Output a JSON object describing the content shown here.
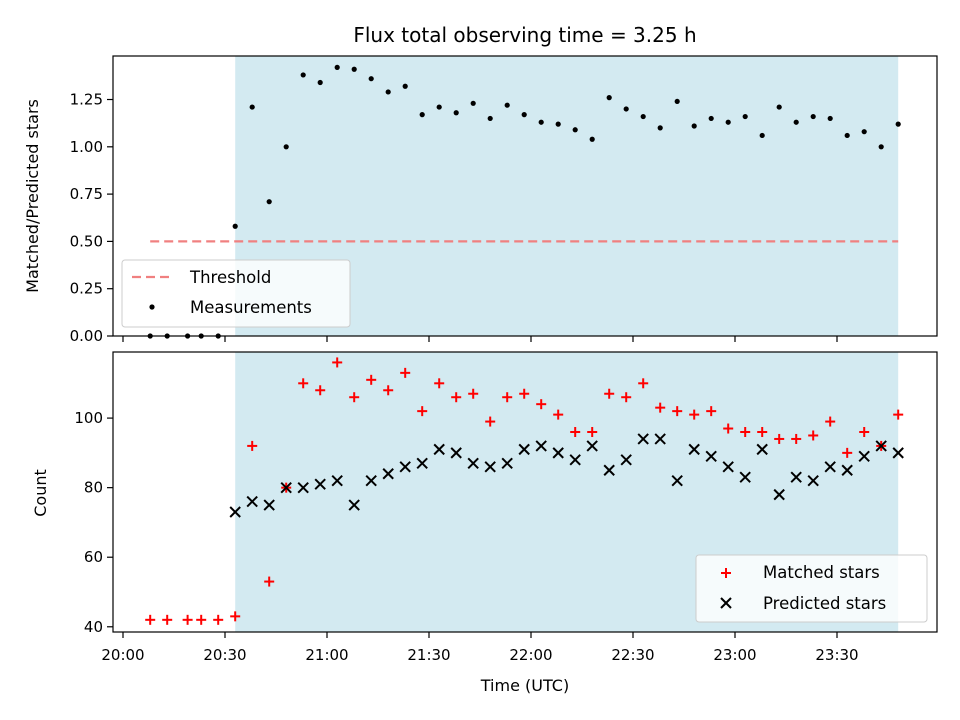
{
  "chart_data": {
    "type": "scatter",
    "title": "Flux total observing time = 3.25 h",
    "xlabel": "Time (UTC)",
    "x_ticks": [
      "20:00",
      "20:30",
      "21:00",
      "21:30",
      "22:00",
      "22:30",
      "23:00",
      "23:30"
    ],
    "observing_window": {
      "start": "20:33",
      "end": "23:48"
    },
    "colors": {
      "window": "#d3eaf1",
      "threshold": "#f08080",
      "measurements": "#000000",
      "matched": "#ff0000",
      "predicted": "#000000"
    },
    "top_panel": {
      "ylabel": "Matched/Predicted stars",
      "ylim": [
        0,
        1.48
      ],
      "y_ticks": [
        "0.00",
        "0.25",
        "0.50",
        "0.75",
        "1.00",
        "1.25"
      ],
      "y_tick_values": [
        0,
        0.25,
        0.5,
        0.75,
        1.0,
        1.25
      ],
      "legend_position": "lower-left",
      "threshold": {
        "name": "Threshold",
        "value": 0.5,
        "x_range": [
          "20:08",
          "23:48"
        ]
      },
      "series": [
        {
          "name": "Measurements",
          "x": [
            "20:08",
            "20:13",
            "20:19",
            "20:23",
            "20:28",
            "20:33",
            "20:38",
            "20:43",
            "20:48",
            "20:53",
            "20:58",
            "21:03",
            "21:08",
            "21:13",
            "21:18",
            "21:23",
            "21:28",
            "21:33",
            "21:38",
            "21:43",
            "21:48",
            "21:53",
            "21:58",
            "22:03",
            "22:08",
            "22:13",
            "22:18",
            "22:23",
            "22:28",
            "22:33",
            "22:38",
            "22:43",
            "22:48",
            "22:53",
            "22:58",
            "23:03",
            "23:08",
            "23:13",
            "23:18",
            "23:23",
            "23:28",
            "23:33",
            "23:38",
            "23:43",
            "23:48"
          ],
          "y": [
            0.0,
            0.0,
            0.0,
            0.0,
            0.0,
            0.58,
            1.21,
            0.71,
            1.0,
            1.38,
            1.34,
            1.42,
            1.41,
            1.36,
            1.29,
            1.32,
            1.17,
            1.21,
            1.18,
            1.23,
            1.15,
            1.22,
            1.17,
            1.13,
            1.12,
            1.09,
            1.04,
            1.26,
            1.2,
            1.16,
            1.1,
            1.24,
            1.11,
            1.15,
            1.13,
            1.16,
            1.06,
            1.21,
            1.13,
            1.16,
            1.15,
            1.06,
            1.08,
            1.0,
            1.12
          ]
        }
      ]
    },
    "bottom_panel": {
      "ylabel": "Count",
      "ylim": [
        38.5,
        119
      ],
      "y_ticks": [
        "40",
        "60",
        "80",
        "100"
      ],
      "y_tick_values": [
        40,
        60,
        80,
        100
      ],
      "legend_position": "lower-right",
      "series": [
        {
          "name": "Matched stars",
          "marker": "plus",
          "x": [
            "20:08",
            "20:13",
            "20:19",
            "20:23",
            "20:28",
            "20:33",
            "20:38",
            "20:43",
            "20:48",
            "20:53",
            "20:58",
            "21:03",
            "21:08",
            "21:13",
            "21:18",
            "21:23",
            "21:28",
            "21:33",
            "21:38",
            "21:43",
            "21:48",
            "21:53",
            "21:58",
            "22:03",
            "22:08",
            "22:13",
            "22:18",
            "22:23",
            "22:28",
            "22:33",
            "22:38",
            "22:43",
            "22:48",
            "22:53",
            "22:58",
            "23:03",
            "23:08",
            "23:13",
            "23:18",
            "23:23",
            "23:28",
            "23:33",
            "23:38",
            "23:43",
            "23:48"
          ],
          "y": [
            42,
            42,
            42,
            42,
            42,
            43,
            92,
            53,
            80,
            110,
            108,
            116,
            106,
            111,
            108,
            113,
            102,
            110,
            106,
            107,
            99,
            106,
            107,
            104,
            101,
            96,
            96,
            107,
            106,
            110,
            103,
            102,
            101,
            102,
            97,
            96,
            96,
            94,
            94,
            95,
            99,
            90,
            96,
            92,
            101
          ]
        },
        {
          "name": "Predicted stars",
          "marker": "x",
          "x": [
            "20:33",
            "20:38",
            "20:43",
            "20:48",
            "20:53",
            "20:58",
            "21:03",
            "21:08",
            "21:13",
            "21:18",
            "21:23",
            "21:28",
            "21:33",
            "21:38",
            "21:43",
            "21:48",
            "21:53",
            "21:58",
            "22:03",
            "22:08",
            "22:13",
            "22:18",
            "22:23",
            "22:28",
            "22:33",
            "22:38",
            "22:43",
            "22:48",
            "22:53",
            "22:58",
            "23:03",
            "23:08",
            "23:13",
            "23:18",
            "23:23",
            "23:28",
            "23:33",
            "23:38",
            "23:43",
            "23:48"
          ],
          "y": [
            73,
            76,
            75,
            80,
            80,
            81,
            82,
            75,
            82,
            84,
            86,
            87,
            91,
            90,
            87,
            86,
            87,
            91,
            92,
            90,
            88,
            92,
            85,
            88,
            94,
            94,
            82,
            91,
            89,
            86,
            83,
            91,
            78,
            83,
            82,
            86,
            85,
            89,
            92,
            90
          ]
        }
      ]
    }
  }
}
